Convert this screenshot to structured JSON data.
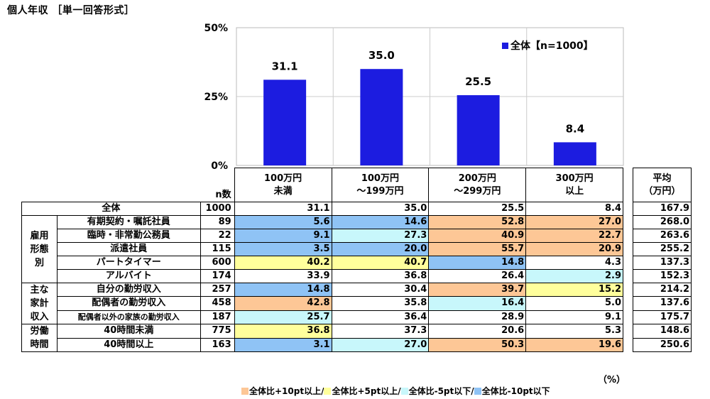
{
  "title": "個人年収 ［単一回答形式］",
  "chart_data": {
    "type": "bar",
    "categories": [
      "100万円未満",
      "100万円～199万円",
      "200万円～299万円",
      "300万円以上"
    ],
    "series": [
      {
        "name": "全体【n=1000】",
        "values": [
          31.1,
          35.0,
          25.5,
          8.4
        ]
      }
    ],
    "value_labels": [
      "31.1",
      "35.0",
      "25.5",
      "8.4"
    ],
    "ylim": [
      0,
      50
    ],
    "yticks": [
      "0%",
      "25%",
      "50%"
    ],
    "bar_color": "#1c1ce0",
    "grid": true,
    "legend": "top-right"
  },
  "legend_label": "全体【n=1000】",
  "table": {
    "n_header": "n数",
    "col_headers": [
      {
        "line1": "100万円",
        "line2": "未満"
      },
      {
        "line1": "100万円",
        "line2": "～199万円"
      },
      {
        "line1": "200万円",
        "line2": "～299万円"
      },
      {
        "line1": "300万円",
        "line2": "以上"
      }
    ],
    "avg_header": {
      "line1": "平均",
      "line2": "（万円）"
    },
    "total": {
      "label": "全体",
      "n": "1000",
      "values": [
        "31.1",
        "35.0",
        "25.5",
        "8.4"
      ],
      "avg": "167.9"
    },
    "groups": [
      {
        "label_lines": [
          "雇用",
          "形態",
          "別"
        ],
        "rows": [
          {
            "label": "有期契約・嘱託社員",
            "n": "89",
            "values": [
              "5.6",
              "14.6",
              "52.8",
              "27.0"
            ],
            "colors": [
              "c10m",
              "c10m",
              "c10p",
              "c10p"
            ],
            "avg": "268.0"
          },
          {
            "label": "臨時・非常勤公務員",
            "n": "22",
            "values": [
              "9.1",
              "27.3",
              "40.9",
              "22.7"
            ],
            "colors": [
              "c10m",
              "c5m",
              "c10p",
              "c10p"
            ],
            "avg": "263.6"
          },
          {
            "label": "派遣社員",
            "n": "115",
            "values": [
              "3.5",
              "20.0",
              "55.7",
              "20.9"
            ],
            "colors": [
              "c10m",
              "c10m",
              "c10p",
              "c10p"
            ],
            "avg": "255.2"
          },
          {
            "label": "パートタイマー",
            "n": "600",
            "values": [
              "40.2",
              "40.7",
              "14.8",
              "4.3"
            ],
            "colors": [
              "c5p",
              "c5p",
              "c10m",
              ""
            ],
            "avg": "137.3"
          },
          {
            "label": "アルバイト",
            "n": "174",
            "values": [
              "33.9",
              "36.8",
              "26.4",
              "2.9"
            ],
            "colors": [
              "",
              "",
              "",
              "c5m"
            ],
            "avg": "152.3"
          }
        ]
      },
      {
        "label_lines": [
          "主な",
          "家計",
          "収入"
        ],
        "rows": [
          {
            "label": "自分の勤労収入",
            "n": "257",
            "values": [
              "14.8",
              "30.4",
              "39.7",
              "15.2"
            ],
            "colors": [
              "c10m",
              "",
              "c10p",
              "c5p"
            ],
            "avg": "214.2"
          },
          {
            "label": "配偶者の勤労収入",
            "n": "458",
            "values": [
              "42.8",
              "35.8",
              "16.4",
              "5.0"
            ],
            "colors": [
              "c10p",
              "",
              "c5m",
              ""
            ],
            "avg": "137.6"
          },
          {
            "label": "配偶者以外の家族の勤労収入",
            "n": "187",
            "values": [
              "25.7",
              "36.4",
              "28.9",
              "9.1"
            ],
            "colors": [
              "c5m",
              "",
              "",
              ""
            ],
            "avg": "175.7"
          }
        ]
      },
      {
        "label_lines": [
          "労働",
          "時間"
        ],
        "rows": [
          {
            "label": "40時間未満",
            "n": "775",
            "values": [
              "36.8",
              "37.3",
              "20.6",
              "5.3"
            ],
            "colors": [
              "c5p",
              "",
              "",
              ""
            ],
            "avg": "148.6"
          },
          {
            "label": "40時間以上",
            "n": "163",
            "values": [
              "3.1",
              "27.0",
              "50.3",
              "19.6"
            ],
            "colors": [
              "c10m",
              "c5m",
              "c10p",
              "c10p"
            ],
            "avg": "250.6"
          }
        ]
      }
    ]
  },
  "unit_note": "（%）",
  "color_legend": [
    {
      "label": "全体比+10pt以上/",
      "color": "#fdc796"
    },
    {
      "label": "全体比+5pt以上/",
      "color": "#ffff9c"
    },
    {
      "label": "全体比-5pt以下/",
      "color": "#c8f7fb"
    },
    {
      "label": "全体比-10pt以下",
      "color": "#8fc3f5"
    }
  ]
}
